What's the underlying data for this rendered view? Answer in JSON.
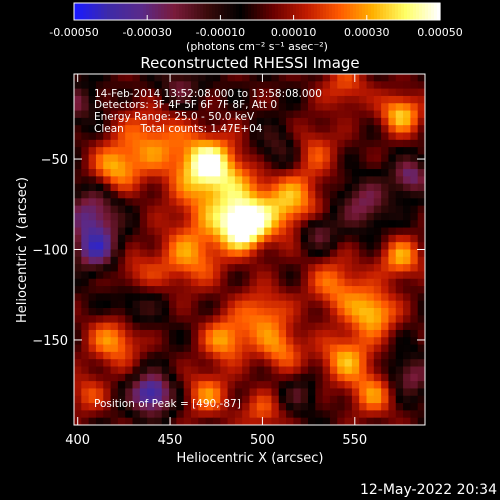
{
  "colorbar": {
    "ticks": [
      "-0.00050",
      "-0.00030",
      "-0.00010",
      "0.00010",
      "0.00030",
      "0.00050"
    ],
    "tick_values": [
      -0.0005,
      -0.0003,
      -0.0001,
      0.0001,
      0.0003,
      0.0005
    ],
    "range": [
      -0.0005,
      0.0005
    ],
    "unit_text": "(photons cm⁻² s⁻¹ asec⁻²)",
    "colors": [
      "#1a1aff",
      "#3d2aa8",
      "#5a2a8a",
      "#7a1a3a",
      "#3a0a0a",
      "#000000",
      "#6a0000",
      "#c01a00",
      "#ff5a00",
      "#ffb000",
      "#ffff66",
      "#ffffff"
    ]
  },
  "chart_data": {
    "type": "heatmap",
    "title": "Reconstructed RHESSI Image",
    "xlabel": "Heliocentric X (arcsec)",
    "ylabel": "Heliocentric Y (arcsec)",
    "xlim": [
      398,
      588
    ],
    "ylim": [
      -197,
      -3
    ],
    "x_ticks": [
      400,
      450,
      500,
      550
    ],
    "x_tick_labels": [
      "400",
      "450",
      "500",
      "550"
    ],
    "y_ticks": [
      -50,
      -100,
      -150
    ],
    "y_tick_labels": [
      "−50",
      "−100",
      "−150"
    ],
    "annotations": [
      "14-Feb-2014 13:52:08.000 to 13:58:08.000",
      "Detectors: 3F 4F 5F 6F 7F 8F, Att 0",
      "Energy Range: 25.0 - 50.0 keV",
      "Clean     Total counts: 1.47E+04"
    ],
    "peak_label": "Position of Peak = [490,-87]",
    "peak": [
      490,
      -87
    ],
    "sources": [
      {
        "x": 490,
        "y": -87,
        "amp": 0.0005,
        "sigma": 9
      },
      {
        "x": 478,
        "y": -70,
        "amp": 0.0003,
        "sigma": 18
      },
      {
        "x": 470,
        "y": -52,
        "amp": 0.00035,
        "sigma": 10
      },
      {
        "x": 440,
        "y": -40,
        "amp": 0.00025,
        "sigma": 14
      },
      {
        "x": 420,
        "y": -55,
        "amp": 0.00028,
        "sigma": 9
      },
      {
        "x": 515,
        "y": -75,
        "amp": 0.0003,
        "sigma": 12
      },
      {
        "x": 525,
        "y": -45,
        "amp": 0.00022,
        "sigma": 11
      },
      {
        "x": 575,
        "y": -25,
        "amp": 0.00035,
        "sigma": 8
      },
      {
        "x": 545,
        "y": -10,
        "amp": 0.0002,
        "sigma": 9
      },
      {
        "x": 460,
        "y": -105,
        "amp": 0.00025,
        "sigma": 12
      },
      {
        "x": 430,
        "y": -115,
        "amp": 0.0002,
        "sigma": 10
      },
      {
        "x": 540,
        "y": -120,
        "amp": 0.00025,
        "sigma": 11
      },
      {
        "x": 560,
        "y": -135,
        "amp": 0.00035,
        "sigma": 9
      },
      {
        "x": 575,
        "y": -105,
        "amp": 0.0003,
        "sigma": 8
      },
      {
        "x": 500,
        "y": -135,
        "amp": 0.00025,
        "sigma": 10
      },
      {
        "x": 480,
        "y": -150,
        "amp": 0.0003,
        "sigma": 9
      },
      {
        "x": 420,
        "y": -150,
        "amp": 0.0003,
        "sigma": 10
      },
      {
        "x": 510,
        "y": -155,
        "amp": 0.00025,
        "sigma": 9
      },
      {
        "x": 545,
        "y": -160,
        "amp": 0.0003,
        "sigma": 10
      },
      {
        "x": 560,
        "y": -180,
        "amp": 0.00025,
        "sigma": 9
      },
      {
        "x": 470,
        "y": -180,
        "amp": 0.00025,
        "sigma": 9
      },
      {
        "x": 500,
        "y": -190,
        "amp": 0.0002,
        "sigma": 8
      },
      {
        "x": 405,
        "y": -180,
        "amp": 0.00018,
        "sigma": 8
      },
      {
        "x": 408,
        "y": -80,
        "amp": -0.0003,
        "sigma": 10
      },
      {
        "x": 410,
        "y": -100,
        "amp": -0.00035,
        "sigma": 9
      },
      {
        "x": 440,
        "y": -180,
        "amp": -0.00045,
        "sigma": 8
      },
      {
        "x": 510,
        "y": -45,
        "amp": -0.00025,
        "sigma": 10
      },
      {
        "x": 555,
        "y": -75,
        "amp": -0.00025,
        "sigma": 10
      },
      {
        "x": 430,
        "y": -130,
        "amp": -0.0002,
        "sigma": 10
      },
      {
        "x": 530,
        "y": -90,
        "amp": -0.00025,
        "sigma": 7
      },
      {
        "x": 580,
        "y": -170,
        "amp": -0.00025,
        "sigma": 8
      },
      {
        "x": 455,
        "y": -10,
        "amp": -0.0002,
        "sigma": 9
      },
      {
        "x": 580,
        "y": -60,
        "amp": -0.0003,
        "sigma": 7
      },
      {
        "x": 400,
        "y": -20,
        "amp": -0.0002,
        "sigma": 8
      },
      {
        "x": 520,
        "y": -180,
        "amp": -0.00015,
        "sigma": 7
      }
    ]
  },
  "footer": {
    "timestamp": "12-May-2022 20:34"
  }
}
